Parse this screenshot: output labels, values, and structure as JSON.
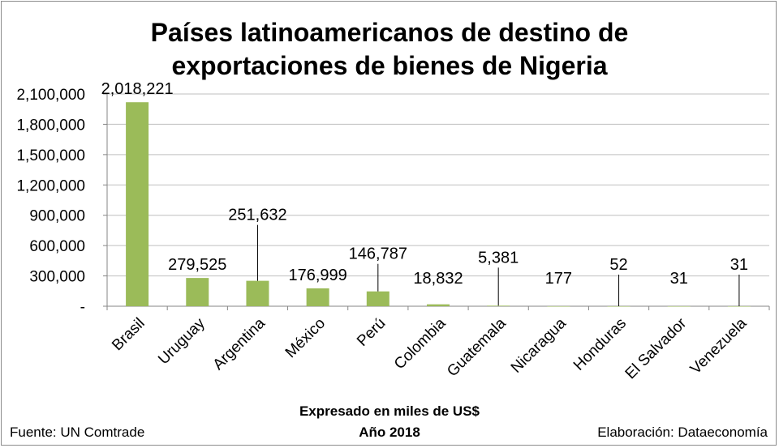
{
  "chart_data": {
    "type": "bar",
    "title_line1": "Países latinoamericanos de destino de",
    "title_line2": "exportaciones de bienes de Nigeria",
    "categories": [
      "Brasil",
      "Uruguay",
      "Argentina",
      "México",
      "Perú",
      "Colombia",
      "Guatemala",
      "Nicaragua",
      "Honduras",
      "El Salvador",
      "Venezuela"
    ],
    "values": [
      2018221,
      279525,
      251632,
      176999,
      146787,
      18832,
      5381,
      177,
      52,
      31,
      31
    ],
    "value_labels": [
      "2,018,221",
      "279,525",
      "251,632",
      "176,999",
      "146,787",
      "18,832",
      "5,381",
      "177",
      "52",
      "31",
      "31"
    ],
    "ylim": [
      0,
      2100000
    ],
    "yticks": [
      0,
      300000,
      600000,
      900000,
      1200000,
      1500000,
      1800000,
      2100000
    ],
    "ytick_labels": [
      "-",
      "300,000",
      "600,000",
      "900,000",
      "1,200,000",
      "1,500,000",
      "1,800,000",
      "2,100,000"
    ],
    "bar_color": "#9bbb59",
    "grid": true,
    "legend": "none"
  },
  "footer": {
    "source": "Fuente: UN Comtrade",
    "unit_note": "Expresado en miles de US$",
    "year": "Año 2018",
    "author": "Elaboración: Dataeconomía"
  }
}
